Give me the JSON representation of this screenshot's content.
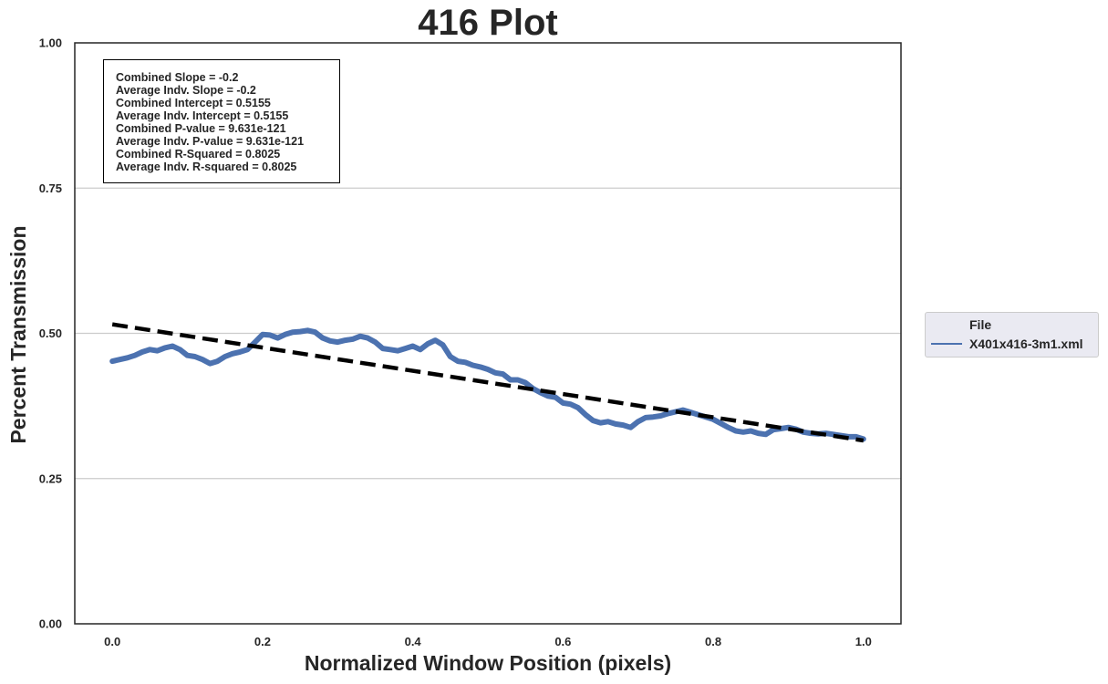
{
  "chart_data": {
    "type": "line",
    "title": "416 Plot",
    "xlabel": "Normalized Window Position (pixels)",
    "ylabel": "Percent Transmission",
    "xlim": [
      -0.05,
      1.05
    ],
    "ylim": [
      0.0,
      1.0
    ],
    "xticks": [
      "0.0",
      "0.2",
      "0.4",
      "0.6",
      "0.8",
      "1.0"
    ],
    "yticks": [
      "0.00",
      "0.25",
      "0.50",
      "0.75",
      "1.00"
    ],
    "grid": "horizontal",
    "legend": {
      "placement": "right-outside",
      "title": "File",
      "entries": [
        "X401x416-3m1.xml"
      ]
    },
    "series": [
      {
        "name": "X401x416-3m1.xml",
        "color": "#4c72b0",
        "x": [
          0.0,
          0.01,
          0.02,
          0.03,
          0.04,
          0.05,
          0.06,
          0.07,
          0.08,
          0.09,
          0.1,
          0.11,
          0.12,
          0.13,
          0.14,
          0.15,
          0.16,
          0.17,
          0.18,
          0.19,
          0.2,
          0.21,
          0.22,
          0.23,
          0.24,
          0.25,
          0.26,
          0.27,
          0.28,
          0.29,
          0.3,
          0.31,
          0.32,
          0.33,
          0.34,
          0.35,
          0.36,
          0.37,
          0.38,
          0.39,
          0.4,
          0.41,
          0.42,
          0.43,
          0.44,
          0.45,
          0.46,
          0.47,
          0.48,
          0.49,
          0.5,
          0.51,
          0.52,
          0.53,
          0.54,
          0.55,
          0.56,
          0.57,
          0.58,
          0.59,
          0.6,
          0.61,
          0.62,
          0.63,
          0.64,
          0.65,
          0.66,
          0.67,
          0.68,
          0.69,
          0.7,
          0.71,
          0.72,
          0.73,
          0.74,
          0.75,
          0.76,
          0.77,
          0.78,
          0.79,
          0.8,
          0.81,
          0.82,
          0.83,
          0.84,
          0.85,
          0.86,
          0.87,
          0.88,
          0.89,
          0.9,
          0.91,
          0.92,
          0.93,
          0.94,
          0.95,
          0.96,
          0.97,
          0.98,
          0.99,
          1.0
        ],
        "y": [
          0.452,
          0.455,
          0.458,
          0.462,
          0.468,
          0.472,
          0.47,
          0.475,
          0.478,
          0.472,
          0.462,
          0.46,
          0.455,
          0.448,
          0.452,
          0.46,
          0.465,
          0.468,
          0.472,
          0.485,
          0.498,
          0.497,
          0.492,
          0.498,
          0.502,
          0.503,
          0.505,
          0.502,
          0.492,
          0.487,
          0.485,
          0.488,
          0.49,
          0.495,
          0.492,
          0.485,
          0.474,
          0.472,
          0.47,
          0.474,
          0.478,
          0.472,
          0.482,
          0.488,
          0.48,
          0.46,
          0.452,
          0.45,
          0.445,
          0.442,
          0.438,
          0.432,
          0.43,
          0.42,
          0.42,
          0.415,
          0.405,
          0.398,
          0.392,
          0.39,
          0.38,
          0.378,
          0.372,
          0.36,
          0.35,
          0.346,
          0.348,
          0.344,
          0.342,
          0.338,
          0.348,
          0.355,
          0.356,
          0.358,
          0.362,
          0.365,
          0.368,
          0.364,
          0.36,
          0.356,
          0.352,
          0.345,
          0.338,
          0.332,
          0.33,
          0.332,
          0.328,
          0.326,
          0.334,
          0.336,
          0.338,
          0.335,
          0.33,
          0.328,
          0.327,
          0.328,
          0.326,
          0.324,
          0.322,
          0.322,
          0.318
        ]
      }
    ],
    "regression": {
      "color": "#000000",
      "style": "dashed",
      "slope": -0.2,
      "intercept": 0.5155
    },
    "annotations": [
      "Combined Slope = -0.2",
      "Average Indv. Slope = -0.2",
      "Combined Intercept = 0.5155",
      "Average Indv. Intercept = 0.5155",
      "Combined P-value = 9.631e-121",
      "Average Indv. P-value = 9.631e-121",
      "Combined R-Squared = 0.8025",
      "Average Indv. R-squared = 0.8025"
    ]
  }
}
